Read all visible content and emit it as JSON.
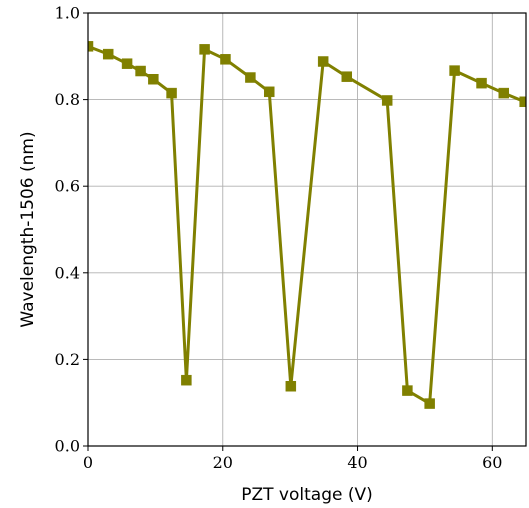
{
  "chart_data": {
    "type": "line",
    "title": "",
    "xlabel": "PZT voltage (V)",
    "ylabel": "Wavelength-1506 (nm)",
    "xlim": [
      0,
      65
    ],
    "ylim": [
      0,
      1.0
    ],
    "x_ticks": [
      0,
      20,
      40,
      60
    ],
    "x_tick_labels": [
      "0",
      "20",
      "40",
      "60"
    ],
    "y_ticks": [
      0.0,
      0.2,
      0.4,
      0.6,
      0.8,
      1.0
    ],
    "y_tick_labels": [
      "0.0",
      "0.2",
      "0.4",
      "0.6",
      "0.8",
      "1.0"
    ],
    "grid": true,
    "legend": "none",
    "marker": "square",
    "series_color": "#808000",
    "series": [
      {
        "x": [
          0,
          3,
          5.8,
          7.8,
          9.7,
          12.4,
          14.6,
          17.3,
          20.4,
          24.1,
          26.9,
          30.1,
          34.9,
          38.4,
          44.4,
          47.4,
          50.7,
          54.4,
          58.4,
          61.7,
          64.8
        ],
        "values": [
          0.923,
          0.905,
          0.883,
          0.866,
          0.847,
          0.815,
          0.152,
          0.916,
          0.893,
          0.851,
          0.818,
          0.138,
          0.888,
          0.853,
          0.798,
          0.128,
          0.098,
          0.867,
          0.838,
          0.815,
          0.795
        ]
      }
    ]
  }
}
